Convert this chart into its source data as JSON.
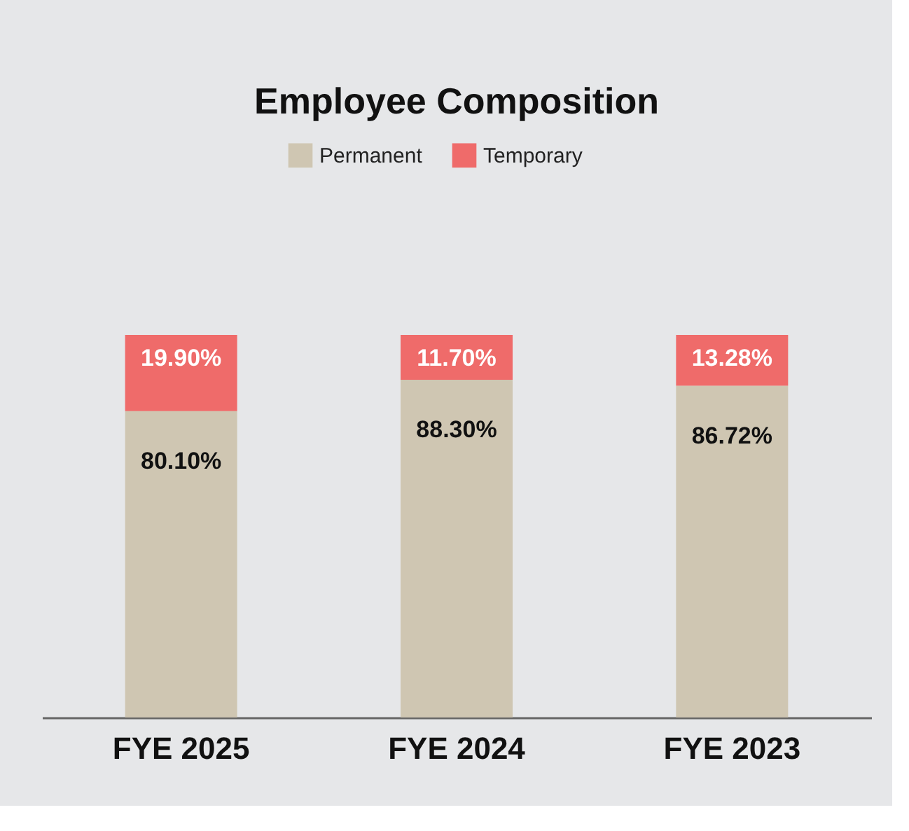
{
  "chart_data": {
    "type": "bar",
    "title": "Employee Composition",
    "categories": [
      "FYE 2025",
      "FYE 2024",
      "FYE 2023"
    ],
    "stacked": true,
    "legend": "top",
    "series": [
      {
        "name": "Permanent",
        "color": "#cfc6b2",
        "values": [
          80.1,
          88.3,
          86.72
        ],
        "value_labels": [
          "80.10%",
          "88.30%",
          "86.72%"
        ]
      },
      {
        "name": "Temporary",
        "color": "#ef6b6a",
        "values": [
          19.9,
          11.7,
          13.28
        ],
        "value_labels": [
          "19.90%",
          "11.70%",
          "13.28%"
        ]
      }
    ]
  }
}
